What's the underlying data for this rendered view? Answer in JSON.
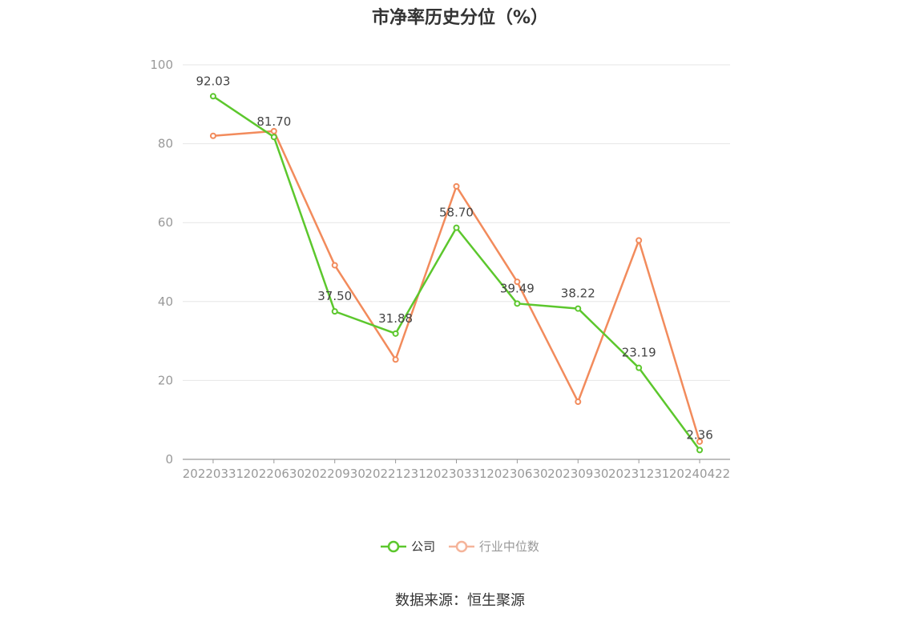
{
  "chart_data": {
    "type": "line",
    "title": "市净率历史分位（%）",
    "categories": [
      "20220331",
      "20220630",
      "20220930",
      "20221231",
      "20230331",
      "20230630",
      "20230930",
      "20231231",
      "20240422"
    ],
    "series": [
      {
        "name": "公司",
        "values": [
          92.03,
          81.7,
          37.5,
          31.88,
          58.7,
          39.49,
          38.22,
          23.19,
          2.36
        ],
        "color": "#5cc72d",
        "labels": [
          "92.03",
          "81.70",
          "37.50",
          "31.88",
          "58.70",
          "39.49",
          "38.22",
          "23.19",
          "2.36"
        ]
      },
      {
        "name": "行业中位数",
        "values": [
          82.0,
          83.2,
          49.2,
          25.3,
          69.2,
          45.0,
          14.6,
          55.5,
          4.5
        ],
        "color": "#f28b5c"
      }
    ],
    "ylim": [
      0,
      100
    ],
    "yticks": [
      "0",
      "20",
      "40",
      "60",
      "80",
      "100"
    ],
    "grid": true,
    "legend_position": "bottom"
  },
  "source_text": "数据来源：恒生聚源",
  "legend_label_colors": {
    "company": "#333333",
    "industry": "#999999"
  },
  "legend_industry_swatch_color": "#f5b49a"
}
